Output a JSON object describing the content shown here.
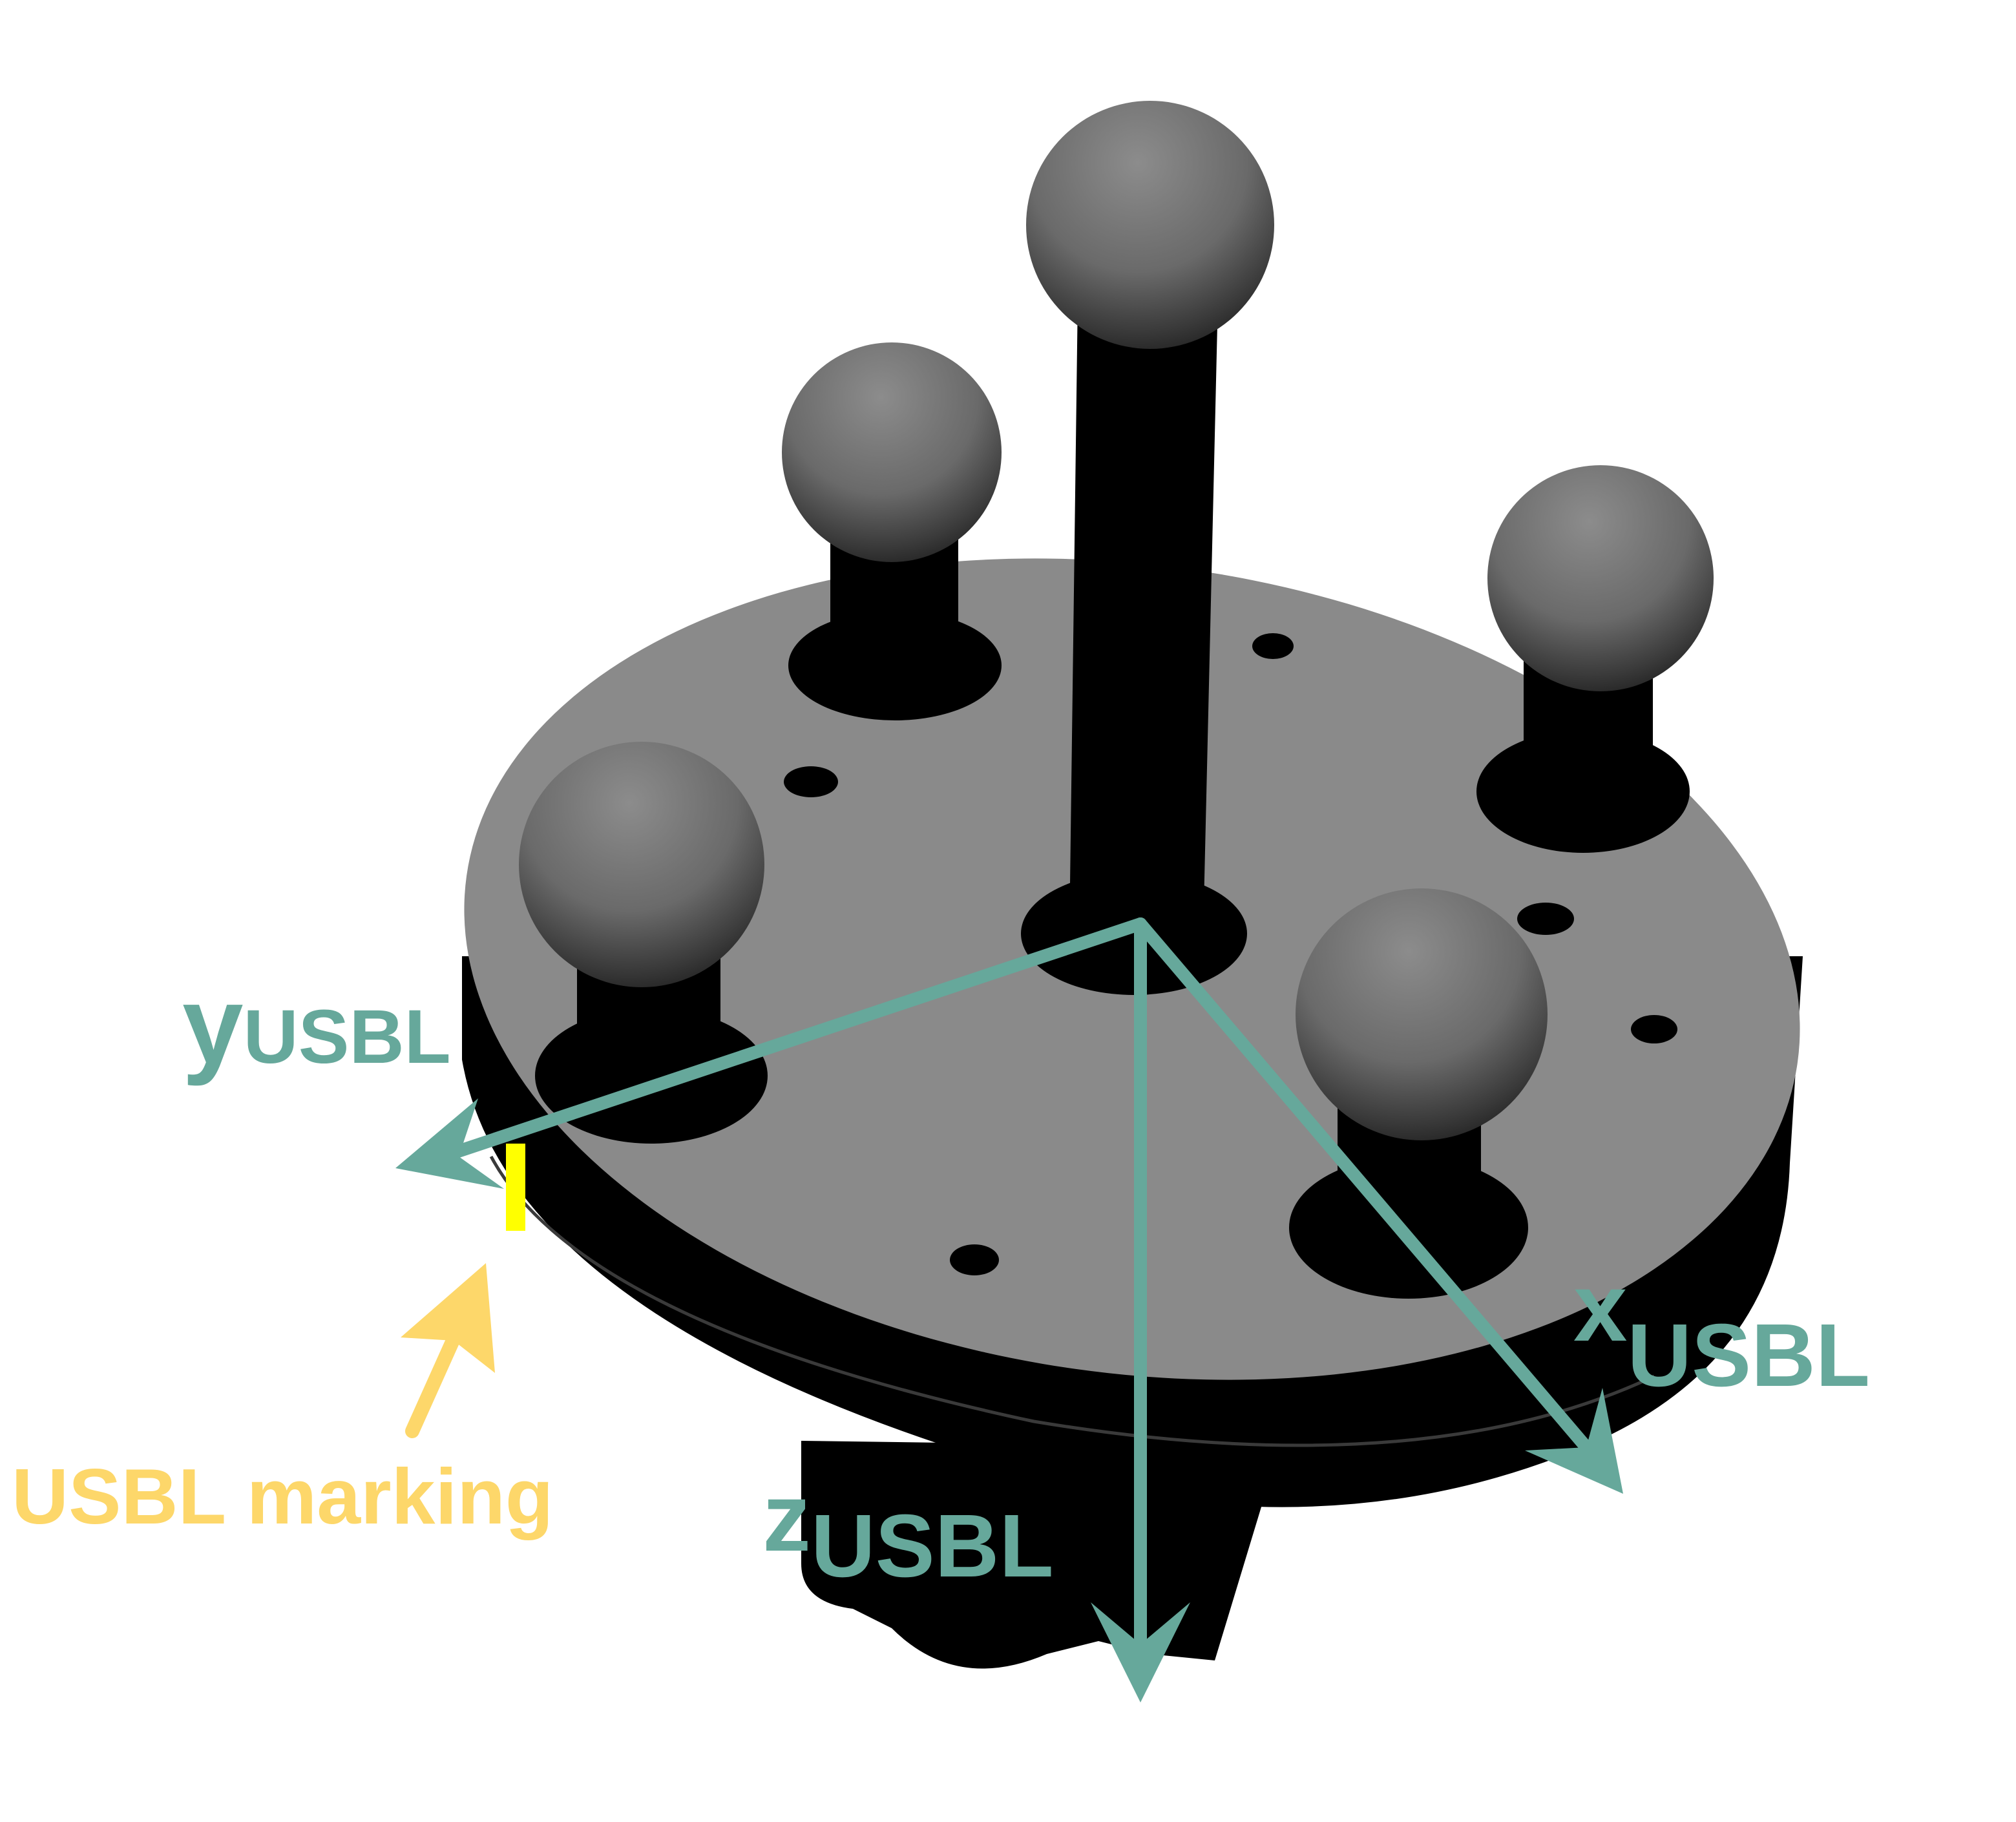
{
  "colors": {
    "axis": "#66a89b",
    "marking_label": "#fdd76a",
    "marking_tick": "#ffff00",
    "background": "#ffffff",
    "device_top": "#8a8a8a",
    "device_body": "#000000"
  },
  "axes": {
    "x": {
      "base": "x",
      "sub": "USBL"
    },
    "y": {
      "base": "y",
      "sub": "USBL"
    },
    "z": {
      "base": "z",
      "sub": "USBL"
    }
  },
  "marking": {
    "label": "USBL marking"
  }
}
